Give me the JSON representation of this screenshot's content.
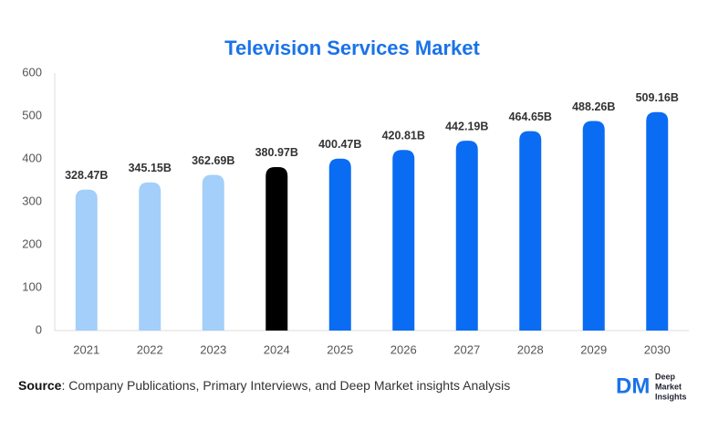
{
  "chart_data": {
    "type": "bar",
    "title": "Television Services Market",
    "categories": [
      "2021",
      "2022",
      "2023",
      "2024",
      "2025",
      "2026",
      "2027",
      "2028",
      "2029",
      "2030"
    ],
    "values": [
      328.47,
      345.15,
      362.69,
      380.97,
      400.47,
      420.81,
      442.19,
      464.65,
      488.26,
      509.16
    ],
    "value_labels": [
      "328.47B",
      "345.15B",
      "362.69B",
      "380.97B",
      "400.47B",
      "420.81B",
      "442.19B",
      "464.65B",
      "488.26B",
      "509.16B"
    ],
    "colors": [
      "#a3cffa",
      "#a3cffa",
      "#a3cffa",
      "#000000",
      "#0a6cf2",
      "#0a6cf2",
      "#0a6cf2",
      "#0a6cf2",
      "#0a6cf2",
      "#0a6cf2"
    ],
    "ylim": [
      0,
      600
    ],
    "yticks": [
      0,
      100,
      200,
      300,
      400,
      500,
      600
    ],
    "grid": false
  },
  "source": {
    "label": "Source",
    "text": ": Company Publications, Primary Interviews, and Deep Market insights Analysis"
  },
  "logo": {
    "mark": "DM",
    "line1": "Deep",
    "line2": "Market",
    "line3": "Insights"
  }
}
